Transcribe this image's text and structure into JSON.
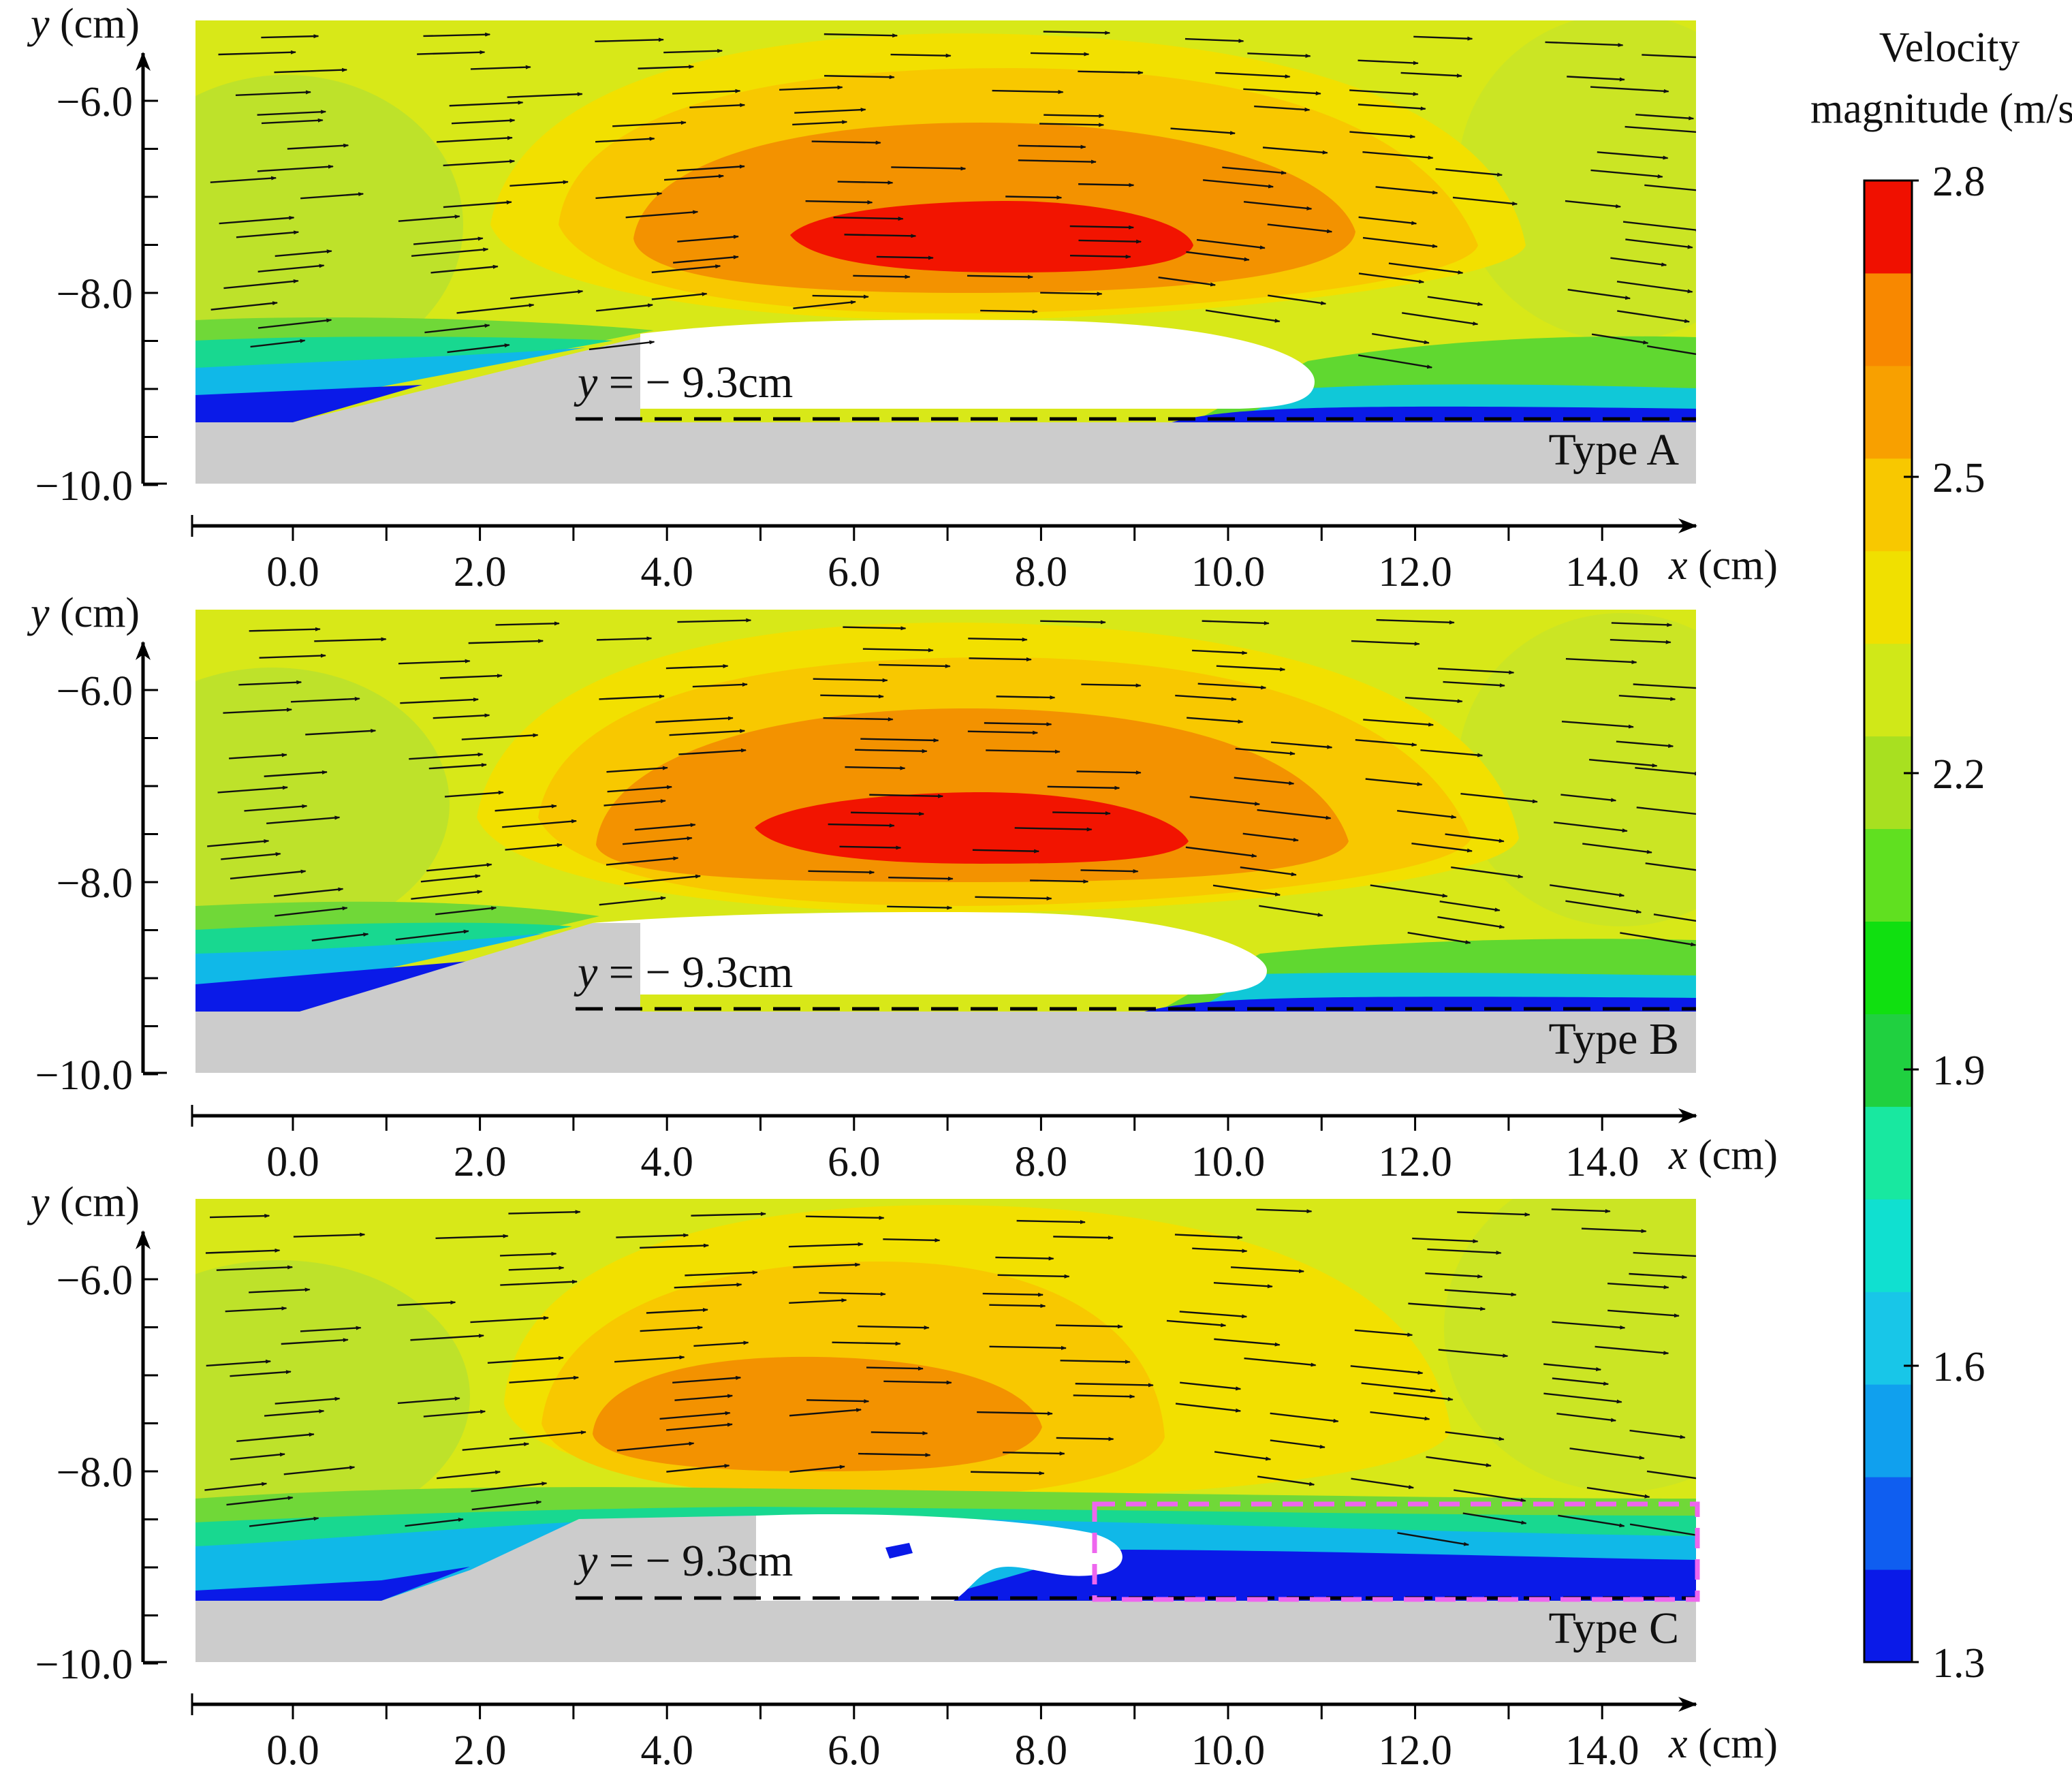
{
  "chart_data": {
    "type": "contour",
    "title": "",
    "xlabel": "x (cm)",
    "ylabel": "y (cm)",
    "xlim": [
      -1.05,
      15.0
    ],
    "ylim": [
      -10.0,
      -5.1
    ],
    "x_ticks": [
      0.0,
      2.0,
      4.0,
      6.0,
      8.0,
      10.0,
      12.0,
      14.0
    ],
    "x_tick_labels": [
      "0.0",
      "2.0",
      "4.0",
      "6.0",
      "8.0",
      "10.0",
      "12.0",
      "14.0"
    ],
    "y_ticks": [
      -6.0,
      -8.0,
      -10.0
    ],
    "y_tick_labels": [
      "−6.0",
      "−8.0",
      "−10.0"
    ],
    "colorbar": {
      "title_line1": "Velocity",
      "title_line2": "magnitude (m/s)",
      "min": 1.3,
      "max": 2.8,
      "ticks": [
        2.8,
        2.5,
        2.2,
        1.9,
        1.6,
        1.3
      ],
      "tick_labels": [
        "2.8",
        "2.5",
        "2.2",
        "1.9",
        "1.6",
        "1.3"
      ],
      "colors": [
        "#0a1ae8",
        "#0f5ef0",
        "#10a0ee",
        "#18c6e8",
        "#10e0d0",
        "#18e8a0",
        "#20d040",
        "#10e010",
        "#60e020",
        "#a8e020",
        "#d0e818",
        "#f0e000",
        "#f8c800",
        "#f8a000",
        "#f88800",
        "#f01000"
      ]
    },
    "reference_line_y": -9.3,
    "reference_label": "y = − 9.3cm",
    "panels": [
      {
        "name": "Type A",
        "max_region": "red core (2.8 m/s) at x ≈ 5.3–9.6 cm, y ≈ −7.0 to −7.6 cm",
        "cavity_x_range": [
          3.7,
          10.9
        ],
        "highlight_box": null
      },
      {
        "name": "Type B",
        "max_region": "red core (2.8 m/s) at x ≈ 4.9–9.5 cm, y ≈ −7.0 to −7.6 cm",
        "cavity_x_range": [
          3.7,
          10.4
        ],
        "highlight_box": null
      },
      {
        "name": "Type C",
        "max_region": "orange core (~2.6 m/s), no red region",
        "cavity_x_range": [
          5.0,
          8.9
        ],
        "highlight_box": {
          "x": [
            8.6,
            15.0
          ],
          "y": [
            -9.3,
            -8.35
          ]
        }
      }
    ]
  },
  "labels": {
    "xlabel": "x (cm)",
    "ylabel": "y (cm)",
    "ref": "y = − 9.3cm",
    "panel_a": "Type A",
    "panel_b": "Type B",
    "panel_c": "Type C",
    "cb_title_1": "Velocity",
    "cb_title_2": "magnitude (m/s)"
  }
}
